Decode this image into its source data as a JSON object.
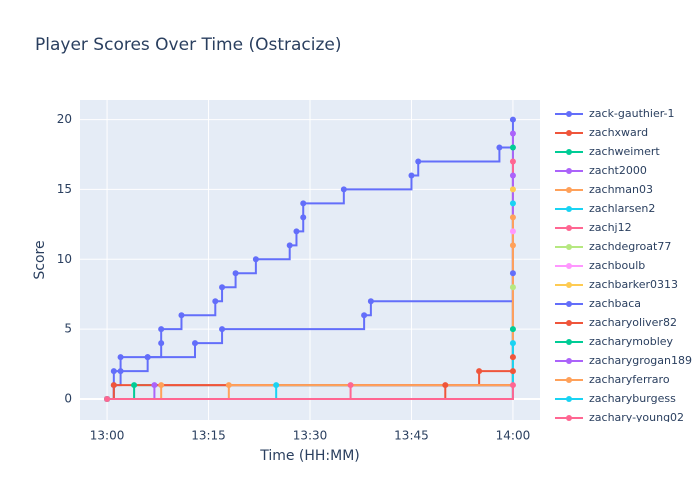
{
  "chart_data": {
    "type": "step-line",
    "title": "Player Scores Over Time (Ostracize)",
    "x_label": "Time (HH:MM)",
    "y_label": "Score",
    "xlim": [
      "12:56",
      "14:04"
    ],
    "xticks": [
      "13:00",
      "13:15",
      "13:30",
      "13:45",
      "14:00"
    ],
    "ylim": [
      -1.5,
      21.4
    ],
    "yticks": [
      0,
      5,
      10,
      15,
      20
    ],
    "grid": true,
    "series": [
      {
        "name": "zack-gauthier-1",
        "color": "#636efa",
        "x": [
          "13:00",
          "13:01",
          "13:02",
          "13:06",
          "13:08",
          "13:08",
          "13:11",
          "13:16",
          "13:17",
          "13:19",
          "13:22",
          "13:27",
          "13:28",
          "13:29",
          "13:29",
          "13:35",
          "13:45",
          "13:46",
          "13:58",
          "14:00"
        ],
        "values": [
          0,
          2,
          3,
          3,
          4,
          5,
          6,
          7,
          8,
          9,
          10,
          11,
          12,
          13,
          14,
          15,
          16,
          17,
          18,
          20
        ]
      },
      {
        "name": "zachxward",
        "color": "#EF553B",
        "x": [
          "13:00",
          "13:50",
          "13:55",
          "14:00"
        ],
        "values": [
          0,
          1,
          2,
          3
        ]
      },
      {
        "name": "zachweimert",
        "color": "#00cc96",
        "x": [
          "13:00",
          "13:04",
          "14:00"
        ],
        "values": [
          0,
          1,
          18
        ]
      },
      {
        "name": "zacht2000",
        "color": "#ab63fa",
        "x": [
          "13:00",
          "13:07",
          "14:00"
        ],
        "values": [
          0,
          1,
          19
        ]
      },
      {
        "name": "zachman03",
        "color": "#FFA15A",
        "x": [
          "13:00",
          "13:08",
          "14:00"
        ],
        "values": [
          0,
          1,
          11
        ]
      },
      {
        "name": "zachlarsen2",
        "color": "#19d3f3",
        "x": [
          "13:00",
          "13:25",
          "14:00"
        ],
        "values": [
          0,
          1,
          14
        ]
      },
      {
        "name": "zachj12",
        "color": "#FF6692",
        "x": [
          "13:00",
          "13:36",
          "14:00"
        ],
        "values": [
          0,
          1,
          17
        ]
      },
      {
        "name": "zachdegroat77",
        "color": "#B6E880",
        "x": [
          "13:00",
          "14:00"
        ],
        "values": [
          0,
          8
        ]
      },
      {
        "name": "zachboulb",
        "color": "#FF97FF",
        "x": [
          "13:00",
          "14:00"
        ],
        "values": [
          0,
          12
        ]
      },
      {
        "name": "zachbarker0313",
        "color": "#FECB52",
        "x": [
          "13:00",
          "14:00"
        ],
        "values": [
          0,
          15
        ]
      },
      {
        "name": "zachbaca",
        "color": "#636efa",
        "x": [
          "13:00",
          "13:01",
          "13:02",
          "13:06",
          "13:13",
          "13:17",
          "13:38",
          "13:39",
          "14:00"
        ],
        "values": [
          0,
          1,
          2,
          3,
          4,
          5,
          6,
          7,
          9
        ]
      },
      {
        "name": "zacharyoliver82",
        "color": "#EF553B",
        "x": [
          "13:00",
          "13:01",
          "14:00"
        ],
        "values": [
          0,
          1,
          2
        ]
      },
      {
        "name": "zacharymobley",
        "color": "#00cc96",
        "x": [
          "13:00",
          "14:00"
        ],
        "values": [
          0,
          5
        ]
      },
      {
        "name": "zacharygrogan189",
        "color": "#ab63fa",
        "x": [
          "13:00",
          "14:00"
        ],
        "values": [
          0,
          16
        ]
      },
      {
        "name": "zacharyferraro",
        "color": "#FFA15A",
        "x": [
          "13:00",
          "13:18",
          "14:00"
        ],
        "values": [
          0,
          1,
          13
        ]
      },
      {
        "name": "zacharyburgess",
        "color": "#19d3f3",
        "x": [
          "13:00",
          "14:00"
        ],
        "values": [
          0,
          4
        ]
      },
      {
        "name": "zachary-young02",
        "color": "#FF6692",
        "x": [
          "13:00",
          "14:00"
        ],
        "values": [
          0,
          1
        ]
      }
    ]
  }
}
